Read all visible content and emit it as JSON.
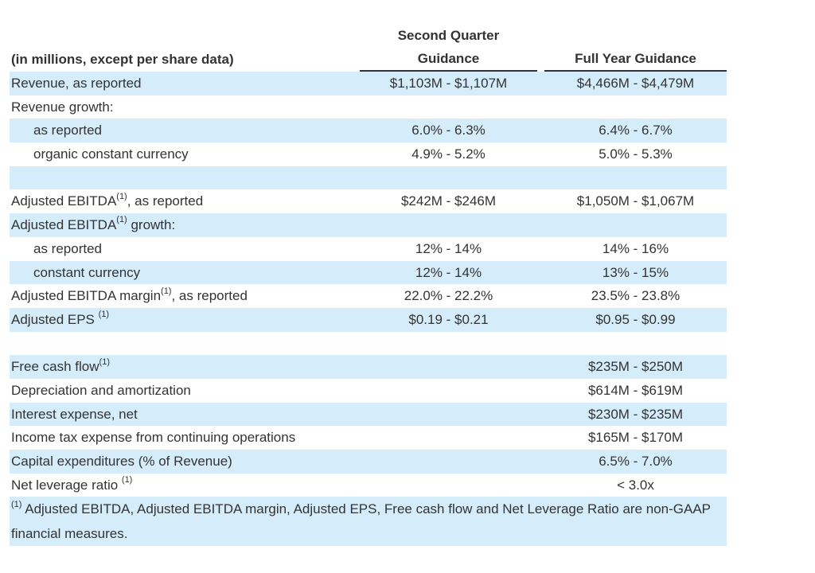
{
  "header": {
    "label_col": "(in millions, except per share data)",
    "sq_line1": "Second Quarter",
    "sq_line2": "Guidance",
    "fy": "Full Year Guidance"
  },
  "rows": [
    {
      "label": "Revenue, as reported",
      "sq": "$1,103M - $1,107M",
      "fy": "$4,466M - $4,479M"
    },
    {
      "label": "Revenue growth:",
      "sq": "",
      "fy": ""
    },
    {
      "label": "as reported",
      "sq": "6.0% - 6.3%",
      "fy": "6.4% - 6.7%"
    },
    {
      "label": "organic constant currency",
      "sq": "4.9% - 5.2%",
      "fy": "5.0% - 5.3%"
    },
    {
      "label": "",
      "sq": "",
      "fy": ""
    },
    {
      "label": "Adjusted EBITDA",
      "sup": "(1)",
      "suffix": ", as reported",
      "sq": "$242M - $246M",
      "fy": "$1,050M - $1,067M"
    },
    {
      "label": "Adjusted EBITDA",
      "sup": "(1)",
      "suffix": " growth:",
      "sq": "",
      "fy": ""
    },
    {
      "label": "as reported",
      "sq": "12% - 14%",
      "fy": "14% - 16%"
    },
    {
      "label": "constant currency",
      "sq": "12% - 14%",
      "fy": "13% - 15%"
    },
    {
      "label": "Adjusted EBITDA margin",
      "sup": "(1)",
      "suffix": ", as reported",
      "sq": "22.0% - 22.2%",
      "fy": "23.5% - 23.8%"
    },
    {
      "label": "Adjusted EPS ",
      "sup": "(1)",
      "suffix": "",
      "sq": "$0.19 - $0.21",
      "fy": "$0.95 - $0.99"
    },
    {
      "label": "",
      "sq": "",
      "fy": ""
    },
    {
      "label": "Free cash flow",
      "sup": "(1)",
      "suffix": "",
      "sq": "",
      "fy": "$235M - $250M"
    },
    {
      "label": "Depreciation and amortization",
      "sq": "",
      "fy": "$614M - $619M"
    },
    {
      "label": "Interest expense, net",
      "sq": "",
      "fy": "$230M - $235M"
    },
    {
      "label": "Income tax expense from continuing operations",
      "sq": "",
      "fy": "$165M - $170M"
    },
    {
      "label": "Capital expenditures (% of Revenue)",
      "sq": "",
      "fy": "6.5% - 7.0%"
    },
    {
      "label": "Net leverage ratio ",
      "sup": "(1)",
      "suffix": "",
      "sq": "",
      "fy": "< 3.0x"
    }
  ],
  "footnote": {
    "sup": "(1)",
    "text": " Adjusted EBITDA, Adjusted EBITDA margin, Adjusted EPS, Free cash flow and Net Leverage Ratio are non-GAAP financial measures."
  }
}
